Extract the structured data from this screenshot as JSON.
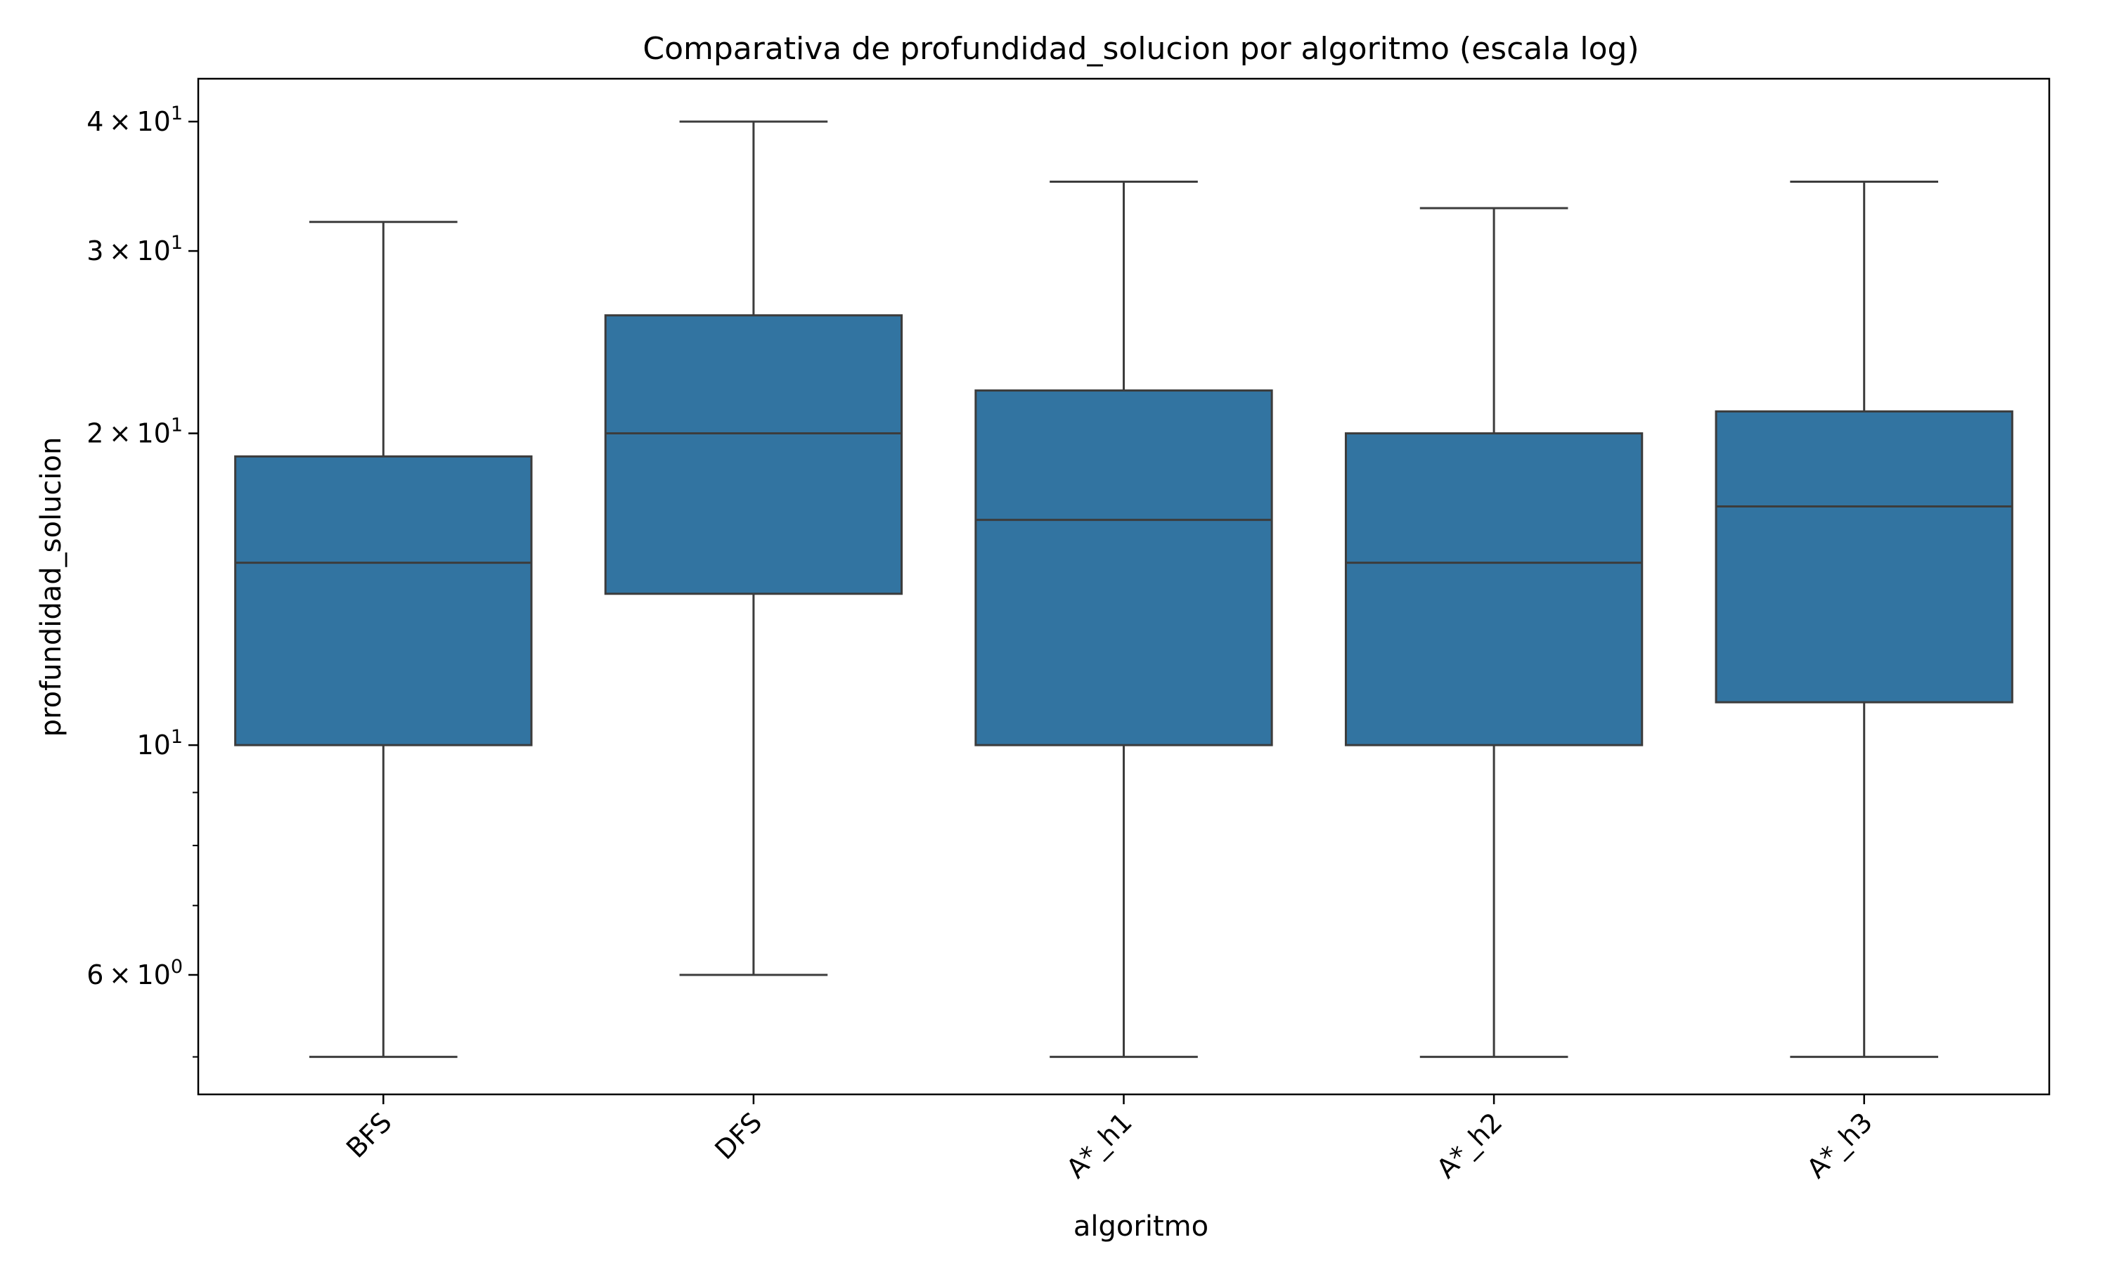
{
  "chart_data": {
    "type": "box",
    "title": "Comparativa de profundidad_solucion por algoritmo (escala log)",
    "xlabel": "algoritmo",
    "ylabel": "profundidad_solucion",
    "yscale": "log",
    "ylim": [
      4.6,
      44
    ],
    "grid": false,
    "legend": "none",
    "box_color": "#3274a1",
    "line_color": "#3c3c3c",
    "categories": [
      "BFS",
      "DFS",
      "A*_h1",
      "A*_h2",
      "A*_h3"
    ],
    "boxes": [
      {
        "category": "BFS",
        "whisker_low": 5,
        "q1": 10,
        "median": 15,
        "q3": 19,
        "whisker_high": 32
      },
      {
        "category": "DFS",
        "whisker_low": 6,
        "q1": 14,
        "median": 20,
        "q3": 26,
        "whisker_high": 40
      },
      {
        "category": "A*_h1",
        "whisker_low": 5,
        "q1": 10,
        "median": 16.5,
        "q3": 22,
        "whisker_high": 35
      },
      {
        "category": "A*_h2",
        "whisker_low": 5,
        "q1": 10,
        "median": 15,
        "q3": 20,
        "whisker_high": 33
      },
      {
        "category": "A*_h3",
        "whisker_low": 5,
        "q1": 11,
        "median": 17,
        "q3": 21,
        "whisker_high": 35
      }
    ],
    "yticks": [
      {
        "value": 6,
        "mantissa": "6",
        "exponent": "0"
      },
      {
        "value": 10,
        "mantissa": "",
        "exponent": "1"
      },
      {
        "value": 20,
        "mantissa": "2",
        "exponent": "1"
      },
      {
        "value": 30,
        "mantissa": "3",
        "exponent": "1"
      },
      {
        "value": 40,
        "mantissa": "4",
        "exponent": "1"
      }
    ],
    "yminor_ticks": [
      5,
      7,
      8,
      9
    ]
  }
}
